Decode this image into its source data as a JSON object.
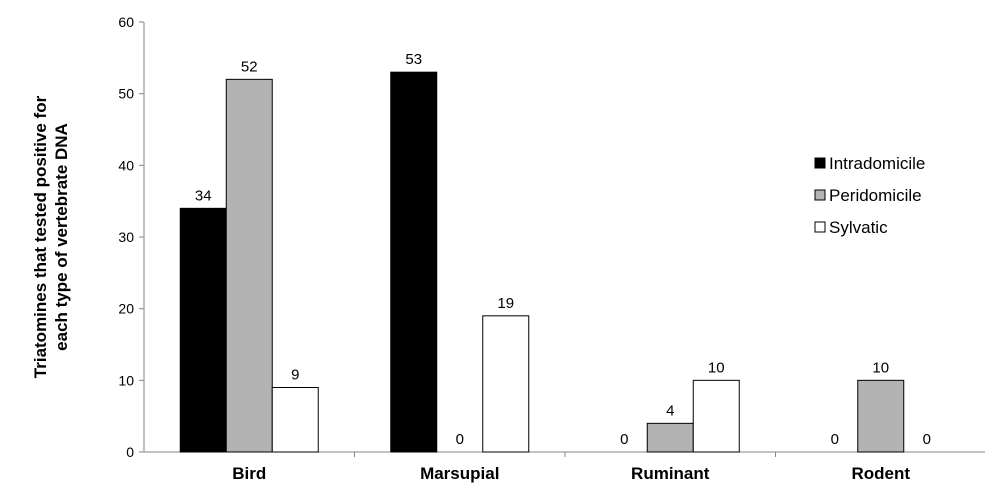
{
  "chart_data": {
    "type": "bar",
    "title": "",
    "xlabel": "",
    "ylabel_lines": [
      "Triatomines  that tested positive for",
      "each type of vertebrate DNA"
    ],
    "categories": [
      "Bird",
      "Marsupial",
      "Ruminant",
      "Rodent"
    ],
    "ylim": [
      0,
      60
    ],
    "yticks": [
      0,
      10,
      20,
      30,
      40,
      50,
      60
    ],
    "grid": false,
    "legend_position": "right",
    "series": [
      {
        "name": "Intradomicile",
        "values": [
          34,
          53,
          0,
          0
        ],
        "color": "#000000"
      },
      {
        "name": "Peridomicile",
        "values": [
          52,
          0,
          4,
          10
        ],
        "color": "#b3b3b3"
      },
      {
        "name": "Sylvatic",
        "values": [
          9,
          19,
          10,
          0
        ],
        "color": "#ffffff"
      }
    ]
  }
}
